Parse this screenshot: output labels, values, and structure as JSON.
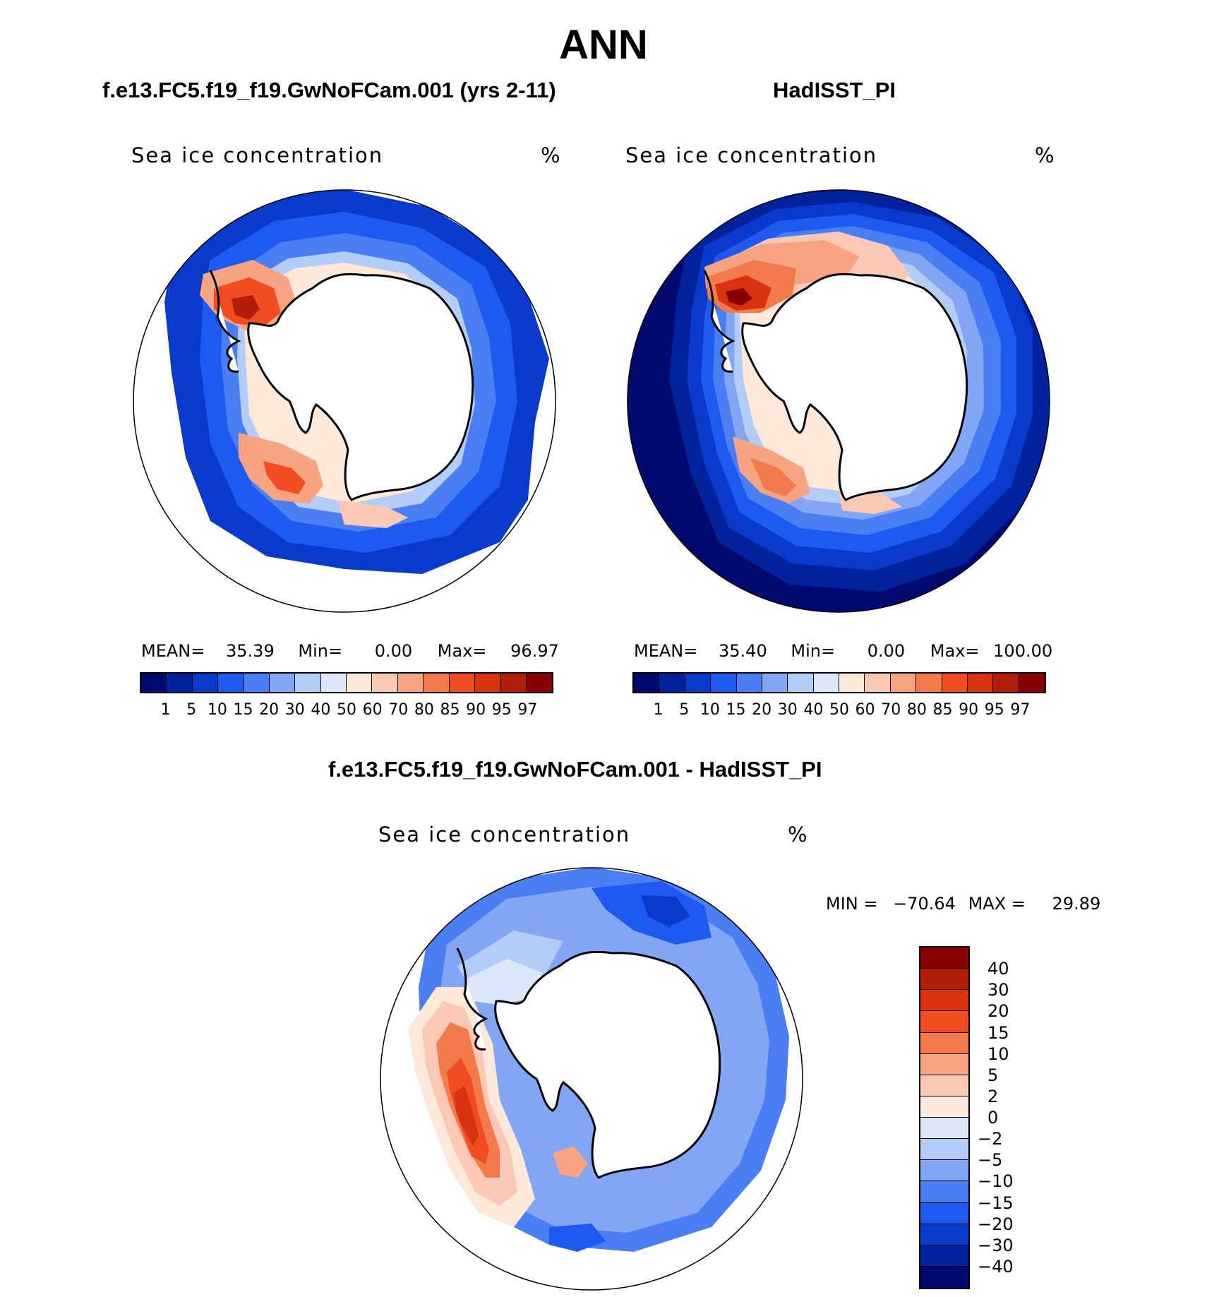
{
  "figure": {
    "title": "ANN",
    "left_title": "f.e13.FC5.f19_f19.GwNoFCam.001 (yrs 2-11)",
    "right_title": "HadISST_PI",
    "diff_title": "f.e13.FC5.f19_f19.GwNoFCam.001 - HadISST_PI"
  },
  "panels": {
    "model": {
      "variable": "Sea ice concentration",
      "units": "%",
      "mean_label": "MEAN=",
      "mean": "35.39",
      "min_label": "Min=",
      "min": "0.00",
      "max_label": "Max=",
      "max": "96.97"
    },
    "obs": {
      "variable": "Sea ice concentration",
      "units": "%",
      "mean_label": "MEAN=",
      "mean": "35.40",
      "min_label": "Min=",
      "min": "0.00",
      "max_label": "Max=",
      "max": "100.00"
    },
    "diff": {
      "variable": "Sea ice concentration",
      "units": "%",
      "min_label": "MIN =",
      "min": "−70.64",
      "max_label": "MAX =",
      "max": "29.89"
    }
  },
  "colorbar_main": {
    "colors": [
      "#000a6e",
      "#00229c",
      "#0a3acc",
      "#1e5af0",
      "#4a7ef2",
      "#82a6f4",
      "#b4ccf8",
      "#dce8fa",
      "#fde8da",
      "#fac8b4",
      "#f8a482",
      "#f27a4c",
      "#f04e22",
      "#d8320e",
      "#b01e0a",
      "#880000"
    ],
    "labels": [
      "1",
      "5",
      "10",
      "15",
      "20",
      "30",
      "40",
      "50",
      "60",
      "70",
      "80",
      "85",
      "90",
      "95",
      "97"
    ]
  },
  "colorbar_diff": {
    "colors": [
      "#880000",
      "#b01e0a",
      "#d8320e",
      "#f04e22",
      "#f27a4c",
      "#f8a482",
      "#fac8b4",
      "#fde8da",
      "#dce8fa",
      "#b4ccf8",
      "#82a6f4",
      "#4a7ef2",
      "#1e5af0",
      "#0a3acc",
      "#00229c",
      "#000a6e"
    ],
    "labels": [
      "40",
      "30",
      "20",
      "15",
      "10",
      "5",
      "2",
      "0",
      "−2",
      "−5",
      "−10",
      "−15",
      "−20",
      "−30",
      "−40"
    ]
  }
}
